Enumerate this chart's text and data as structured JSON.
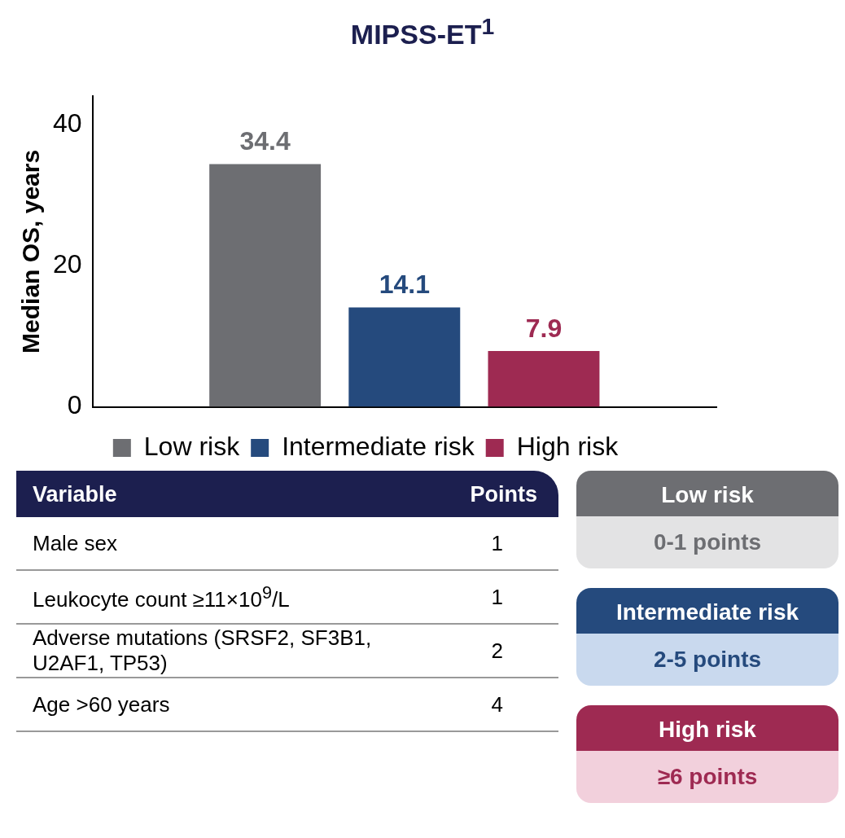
{
  "chart_data": {
    "type": "bar",
    "title": "MIPSS-ET$^{1}$",
    "ylabel": "Median OS, years",
    "categories": [
      null
    ],
    "series": [
      {
        "name": "Low risk",
        "color": "#6d6e72",
        "values": [
          34.4
        ]
      },
      {
        "name": "Intermediate risk",
        "color": "#254a7d",
        "values": [
          14.1
        ]
      },
      {
        "name": "High risk",
        "color": "#9e2a52",
        "values": [
          7.9
        ]
      }
    ],
    "ylim": [
      0,
      44
    ],
    "yticks": [
      0,
      20,
      40
    ],
    "grid": false,
    "legend": "bottom",
    "data_labels": true,
    "annotations": [
      "Variable",
      "Points",
      "Male sex",
      "1",
      "Leukocyte count ≥11×10$^{9}$/L",
      "1",
      "Adverse mutations (SRSF2, SF3B1, U2AF1, TP53)",
      "2",
      "Age >60 years",
      "4",
      "Low risk",
      "0-1 points",
      "Intermediate risk",
      "2-5 points",
      "High risk",
      "≥6 points"
    ]
  }
}
